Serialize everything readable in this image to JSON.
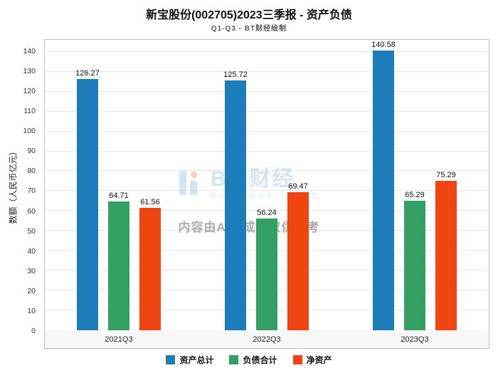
{
  "header": {
    "title": "新宝股份(002705)2023三季报 - 资产负债",
    "subtitle": "Q1-Q3 - BT财经绘制"
  },
  "watermark": {
    "brand": "BT 财经",
    "brand_sub": "BUSINESS TIMES",
    "notice": "内容由AI生成，仅供参考"
  },
  "chart_data": {
    "type": "bar",
    "title": "新宝股份(002705)2023三季报 - 资产负债",
    "subtitle": "Q1-Q3 - BT财经绘制",
    "categories": [
      "2021Q3",
      "2022Q3",
      "2023Q3"
    ],
    "series": [
      {
        "name": "资产总计",
        "color": "#1d7db8",
        "values": [
          126.27,
          125.72,
          140.58
        ]
      },
      {
        "name": "负债合计",
        "color": "#34a164",
        "values": [
          64.71,
          56.24,
          65.29
        ]
      },
      {
        "name": "净资产",
        "color": "#ee4511",
        "values": [
          61.56,
          69.47,
          75.29
        ]
      }
    ],
    "xlabel": "",
    "ylabel": "数额（人民币亿元）",
    "ylim": [
      0,
      146
    ],
    "yticks": [
      0,
      10,
      20,
      30,
      40,
      50,
      60,
      70,
      80,
      90,
      100,
      110,
      120,
      130,
      140
    ],
    "grid": true,
    "legend_position": "bottom"
  }
}
